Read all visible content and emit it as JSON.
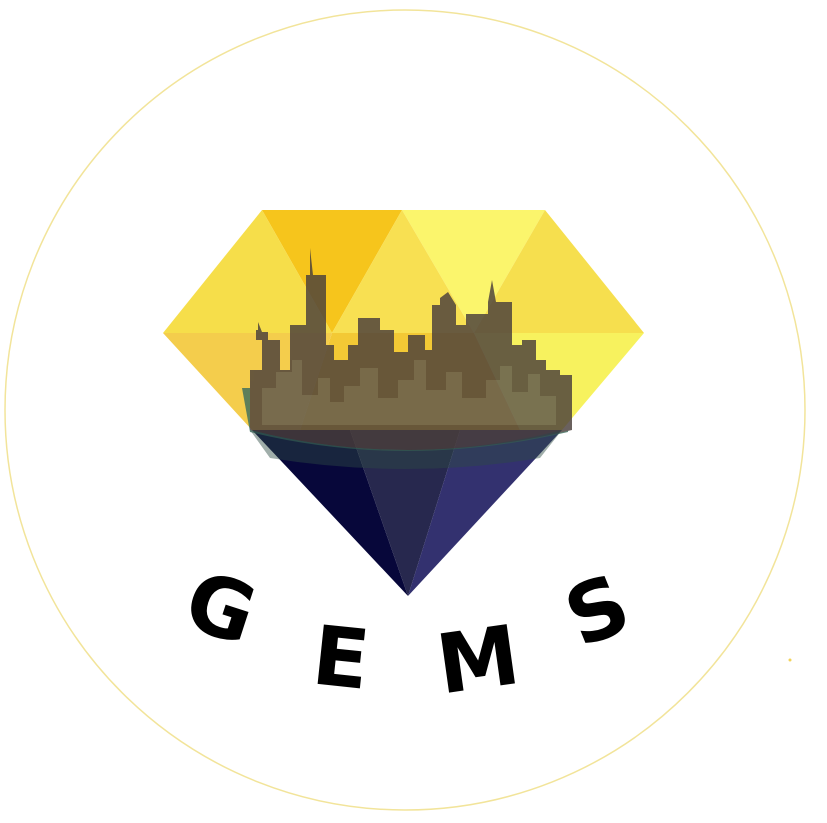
{
  "logo": {
    "wordmark": [
      "G",
      "E",
      "M",
      "S"
    ],
    "description_icon": "diamond-with-city-skyline-icon"
  },
  "colors": {
    "background": "#ffffff",
    "ring": "#f2e49a",
    "gem_top_yellow": "#f6df4a",
    "gem_top_orange": "#f3c21a",
    "gem_top_light": "#fbf36a",
    "gem_bottom_navy": "#07073a",
    "gem_bottom_mid": "#26264f",
    "gem_bottom_right": "#32306e",
    "skyline_dark": "#3d3535",
    "wordmark": "#000000"
  }
}
